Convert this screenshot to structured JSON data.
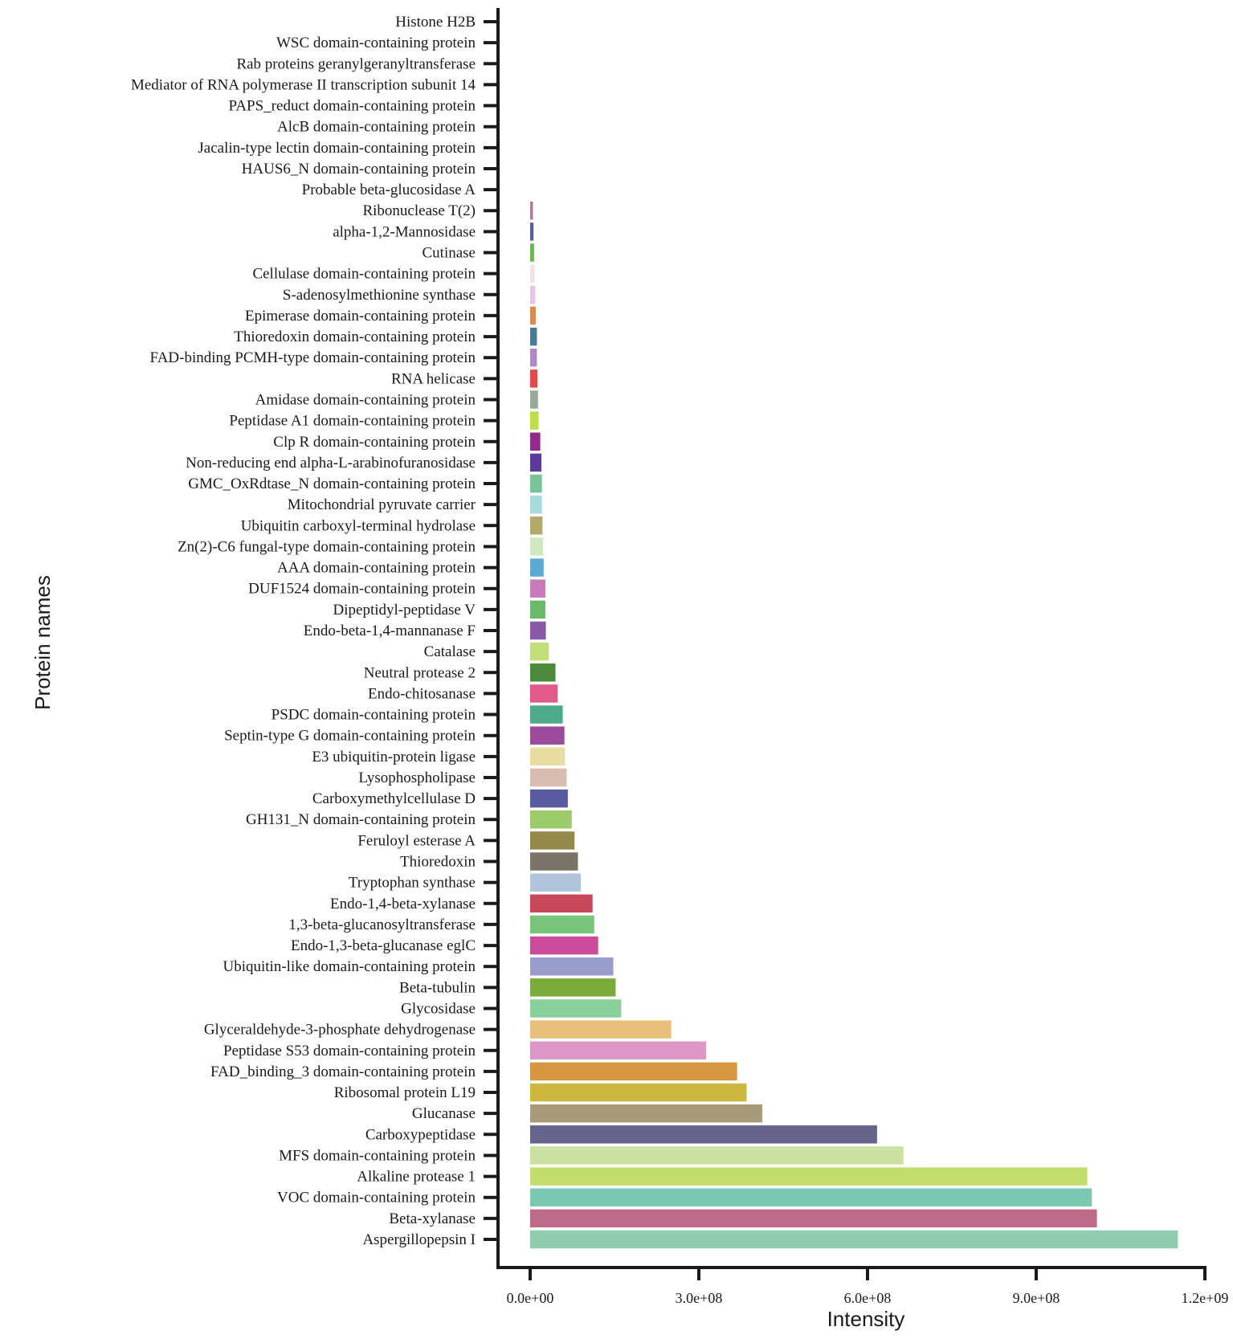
{
  "chart_data": {
    "type": "bar",
    "orientation": "horizontal",
    "title": "",
    "xlabel": "Intensity",
    "ylabel": "Protein names",
    "xlim": [
      0,
      1200000000
    ],
    "xticks": [
      0,
      300000000,
      600000000,
      900000000,
      1200000000
    ],
    "xtick_labels": [
      "0.0e+00",
      "3.0e+08",
      "6.0e+08",
      "9.0e+08",
      "1.2e+09"
    ],
    "grid": false,
    "legend": "none",
    "categories": [
      "Histone H2B",
      "WSC domain-containing protein",
      "Rab proteins geranylgeranyltransferase",
      "Mediator of RNA polymerase II transcription subunit 14",
      "PAPS_reduct domain-containing protein",
      "AlcB domain-containing protein",
      "Jacalin-type lectin domain-containing protein",
      "HAUS6_N domain-containing protein",
      "Probable beta-glucosidase A",
      "Ribonuclease T(2)",
      "alpha-1,2-Mannosidase",
      "Cutinase",
      "Cellulase domain-containing protein",
      "S-adenosylmethionine synthase",
      "Epimerase domain-containing protein",
      "Thioredoxin domain-containing protein",
      "FAD-binding PCMH-type domain-containing protein",
      "RNA helicase",
      "Amidase domain-containing protein",
      "Peptidase A1 domain-containing protein",
      "Clp R domain-containing protein",
      "Non-reducing end alpha-L-arabinofuranosidase",
      "GMC_OxRdtase_N domain-containing protein",
      "Mitochondrial pyruvate carrier",
      "Ubiquitin carboxyl-terminal hydrolase",
      "Zn(2)-C6 fungal-type domain-containing protein",
      "AAA domain-containing protein",
      "DUF1524 domain-containing protein",
      "Dipeptidyl-peptidase V",
      "Endo-beta-1,4-mannanase F",
      "Catalase",
      "Neutral protease 2",
      "Endo-chitosanase",
      "PSDC domain-containing protein",
      "Septin-type G domain-containing protein",
      "E3 ubiquitin-protein ligase",
      "Lysophospholipase",
      "Carboxymethylcellulase D",
      "GH131_N domain-containing protein",
      "Feruloyl esterase A",
      "Thioredoxin",
      "Tryptophan synthase",
      "Endo-1,4-beta-xylanase",
      "1,3-beta-glucanosyltransferase",
      "Endo-1,3-beta-glucanase eglC",
      "Ubiquitin-like domain-containing protein",
      "Beta-tubulin",
      "Glycosidase",
      "Glyceraldehyde-3-phosphate dehydrogenase",
      "Peptidase S53 domain-containing protein",
      "FAD_binding_3 domain-containing protein",
      "Ribosomal protein L19",
      "Glucanase",
      "Carboxypeptidase",
      "MFS domain-containing protein",
      "Alkaline protease 1",
      "VOC domain-containing protein",
      "Beta-xylanase",
      "Aspergillopepsin I"
    ],
    "values": [
      0,
      0,
      0,
      0,
      0,
      0,
      0,
      0,
      0,
      5000000,
      6000000,
      7000000,
      8000000,
      9000000,
      10000000,
      12000000,
      12000000,
      13000000,
      14000000,
      15000000,
      18000000,
      20000000,
      21000000,
      21000000,
      22000000,
      23000000,
      24000000,
      27000000,
      27000000,
      28000000,
      33000000,
      45000000,
      49000000,
      58000000,
      61000000,
      62000000,
      65000000,
      67000000,
      74000000,
      79000000,
      85000000,
      90000000,
      111000000,
      114000000,
      121000000,
      148000000,
      152000000,
      162000000,
      251000000,
      313000000,
      368000000,
      385000000,
      413000000,
      617000000,
      664000000,
      991000000,
      999000000,
      1008000000,
      1152000000
    ],
    "colors": [
      "#ffffff",
      "#ffffff",
      "#ffffff",
      "#ffffff",
      "#ffffff",
      "#ffffff",
      "#ffffff",
      "#ffffff",
      "#ffffff",
      "#b07a9c",
      "#5a5aa8",
      "#6cb84a",
      "#f3e0e0",
      "#e6c6e6",
      "#e08a4a",
      "#4a7a96",
      "#b08ac8",
      "#e04a4a",
      "#9aaa9a",
      "#c0dc4a",
      "#962a8c",
      "#5a3a9c",
      "#7ac49a",
      "#a8dcdc",
      "#b4a86a",
      "#d0e8c0",
      "#5aaad4",
      "#c87ab8",
      "#6ab86a",
      "#8a5aaa",
      "#c0e07a",
      "#4a8a3a",
      "#e05a8a",
      "#4aaa8a",
      "#9c4a9c",
      "#e8dca0",
      "#d8bcb0",
      "#5a5aa0",
      "#9ccc6a",
      "#968a4a",
      "#7a7466",
      "#b0c4dc",
      "#c84a5a",
      "#7ac47a",
      "#cc4a9a",
      "#9a9ccc",
      "#7aaa3a",
      "#8ad09a",
      "#e8c07a",
      "#dc96c8",
      "#d89640",
      "#ccb840",
      "#a89a7a",
      "#66648a",
      "#cce0a0",
      "#c4dc6a",
      "#7ac8b0",
      "#c06a8a",
      "#90ccb0"
    ]
  }
}
